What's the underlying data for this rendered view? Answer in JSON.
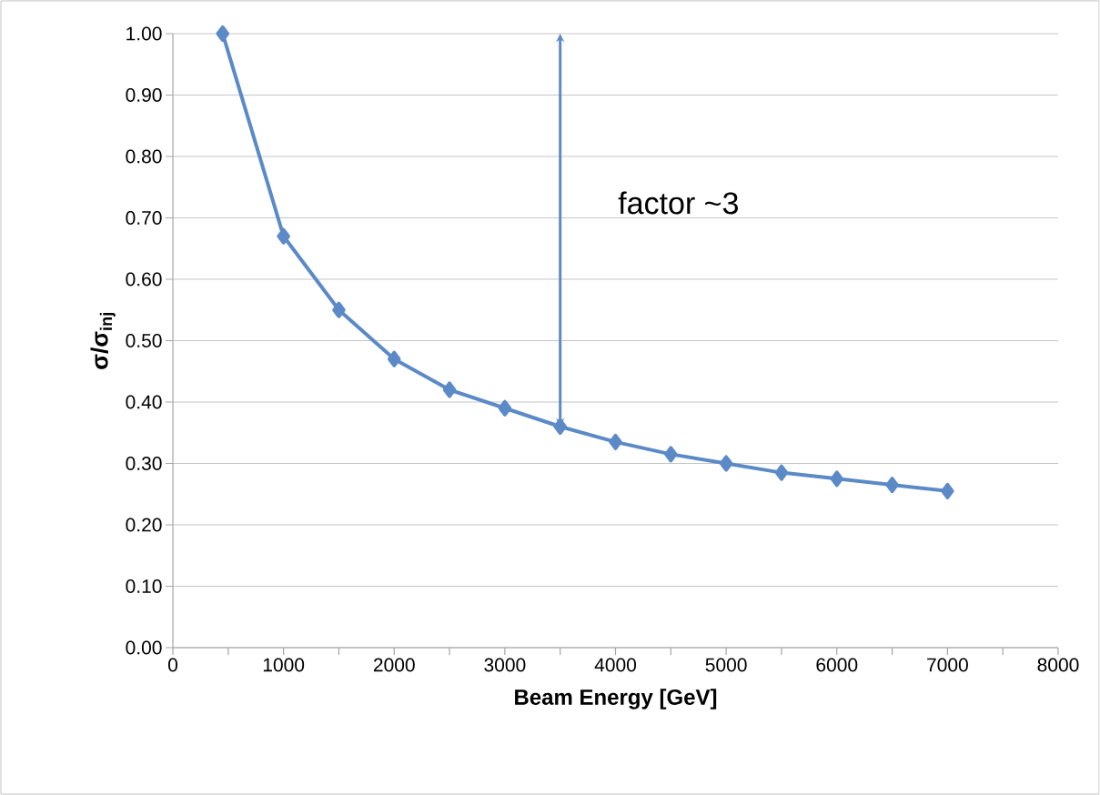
{
  "chart_data": {
    "type": "line",
    "xlabel": "Beam Energy [GeV]",
    "ylabel": "**σ/σ$_{inj}$**",
    "x": [
      450,
      1000,
      1500,
      2000,
      2500,
      3000,
      3500,
      4000,
      4500,
      5000,
      5500,
      6000,
      6500,
      7000
    ],
    "series": [
      {
        "color": "#5b8ac7",
        "values": [
          1.0,
          0.67,
          0.55,
          0.47,
          0.42,
          0.39,
          0.36,
          0.335,
          0.315,
          0.3,
          0.285,
          0.275,
          0.265,
          0.255
        ]
      }
    ],
    "xlim": [
      0,
      8000
    ],
    "ylim": [
      0,
      1
    ],
    "xticks": [
      0,
      {
        "value": 500,
        "label": null
      },
      1000,
      {
        "value": 1500,
        "label": null
      },
      2000,
      {
        "value": 2500,
        "label": null
      },
      3000,
      {
        "value": 3500,
        "label": null
      },
      4000,
      {
        "value": 4500,
        "label": null
      },
      5000,
      {
        "value": 5500,
        "label": null
      },
      6000,
      {
        "value": 6500,
        "label": null
      },
      7000,
      {
        "value": 7500,
        "label": null
      },
      8000
    ],
    "yticks": [
      {
        "value": 0,
        "label": "0.00"
      },
      {
        "value": 0.1,
        "label": "0.10"
      },
      {
        "value": 0.2,
        "label": "0.20"
      },
      {
        "value": 0.3,
        "label": "0.30"
      },
      {
        "value": 0.4,
        "label": "0.40"
      },
      {
        "value": 0.5,
        "label": "0.50"
      },
      {
        "value": 0.6,
        "label": "0.60"
      },
      {
        "value": 0.7,
        "label": "0.70"
      },
      {
        "value": 0.8,
        "label": "0.80"
      },
      {
        "value": 0.9,
        "label": "0.90"
      },
      {
        "value": 1,
        "label": "1.00"
      }
    ],
    "grid": "y",
    "marker": "diamond",
    "line_style": "solid",
    "annotations": [
      "factor ~3"
    ]
  }
}
